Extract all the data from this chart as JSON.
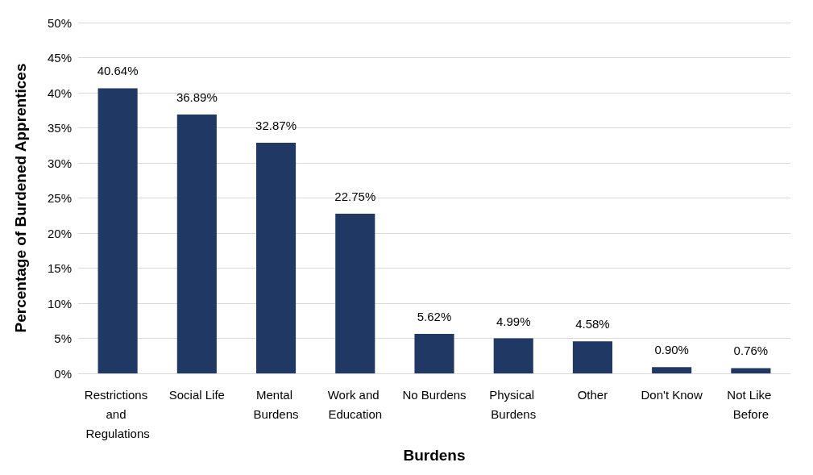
{
  "chart_data": {
    "type": "bar",
    "categories": [
      "Restrictions and Regulations",
      "Social Life",
      "Mental Burdens",
      "Work and Education",
      "No Burdens",
      "Physical Burdens",
      "Other",
      "Don't Know",
      "Not Like Before"
    ],
    "values": [
      40.64,
      36.89,
      32.87,
      22.75,
      5.62,
      4.99,
      4.58,
      0.9,
      0.76
    ],
    "value_labels": [
      "40.64%",
      "36.89%",
      "32.87%",
      "22.75%",
      "5.62%",
      "4.99%",
      "4.58%",
      "0.90%",
      "0.76%"
    ],
    "color": "#203864",
    "xlabel": "Burdens",
    "ylabel": "Percentage of Burdened Apprentices",
    "ylim": [
      0,
      50
    ],
    "yticks": [
      {
        "value": 0,
        "label": "0%"
      },
      {
        "value": 5,
        "label": "5%"
      },
      {
        "value": 10,
        "label": "10%"
      },
      {
        "value": 15,
        "label": "15%"
      },
      {
        "value": 20,
        "label": "20%"
      },
      {
        "value": 25,
        "label": "25%"
      },
      {
        "value": 30,
        "label": "30%"
      },
      {
        "value": 35,
        "label": "35%"
      },
      {
        "value": 40,
        "label": "40%"
      },
      {
        "value": 45,
        "label": "45%"
      },
      {
        "value": 50,
        "label": "50%"
      }
    ],
    "grid": "y"
  }
}
